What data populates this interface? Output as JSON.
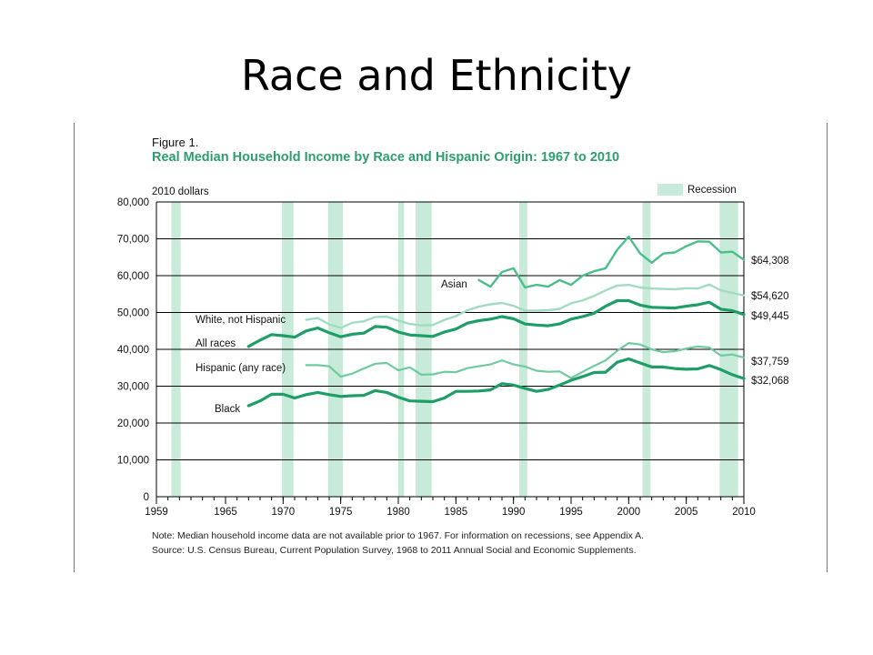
{
  "slide": {
    "title": "Race and Ethnicity"
  },
  "figure": {
    "label": "Figure 1.",
    "title": "Real Median Household Income by Race and Hispanic Origin: 1967 to 2010",
    "note": "Note: Median household income data are not available prior to 1967. For information on recessions, see Appendix A.",
    "source": "Source: U.S. Census Bureau, Current Population Survey, 1968 to 2011 Annual Social and Economic Supplements."
  },
  "colors": {
    "dark": "#1e9e66",
    "medium": "#4bbf8a",
    "light": "#a2dcc0",
    "recession": "#c8ebd9",
    "accent": "#2e9e6e"
  },
  "chart_data": {
    "type": "line",
    "title": "Real Median Household Income by Race and Hispanic Origin: 1967 to 2010",
    "ylabel": "2010 dollars",
    "xlim": [
      1959,
      2010
    ],
    "ylim": [
      0,
      80000
    ],
    "x_ticks": [
      1959,
      1965,
      1970,
      1975,
      1980,
      1985,
      1990,
      1995,
      2000,
      2005,
      2010
    ],
    "y_ticks": [
      0,
      10000,
      20000,
      30000,
      40000,
      50000,
      60000,
      70000,
      80000
    ],
    "y_tick_labels": [
      "0",
      "10,000",
      "20,000",
      "30,000",
      "40,000",
      "50,000",
      "60,000",
      "70,000",
      "80,000"
    ],
    "grid": "horizontal",
    "legend": {
      "label": "Recession",
      "placement": "top-right"
    },
    "recessions": [
      [
        1960.3,
        1961.1
      ],
      [
        1969.9,
        1970.9
      ],
      [
        1973.9,
        1975.2
      ],
      [
        1980.0,
        1980.5
      ],
      [
        1981.5,
        1982.9
      ],
      [
        1990.5,
        1991.2
      ],
      [
        2001.2,
        2001.9
      ],
      [
        2007.9,
        2009.5
      ]
    ],
    "series": [
      {
        "name": "Asian",
        "style": "medium",
        "end_label": "$64,308",
        "x": [
          1987,
          1988,
          1989,
          1990,
          1991,
          1992,
          1993,
          1994,
          1995,
          1996,
          1997,
          1998,
          1999,
          2000,
          2001,
          2002,
          2003,
          2004,
          2005,
          2006,
          2007,
          2008,
          2009,
          2010
        ],
        "y": [
          58800,
          57000,
          61000,
          62000,
          56800,
          57500,
          57000,
          58800,
          57500,
          60000,
          61200,
          62000,
          67000,
          70600,
          66000,
          63500,
          66000,
          66300,
          68000,
          69300,
          69200,
          66300,
          66500,
          64308
        ]
      },
      {
        "name": "White, not Hispanic",
        "style": "light",
        "end_label": "$54,620",
        "x": [
          1972,
          1973,
          1974,
          1975,
          1976,
          1977,
          1978,
          1979,
          1980,
          1981,
          1982,
          1983,
          1984,
          1985,
          1986,
          1987,
          1988,
          1989,
          1990,
          1991,
          1992,
          1993,
          1994,
          1995,
          1996,
          1997,
          1998,
          1999,
          2000,
          2001,
          2002,
          2003,
          2004,
          2005,
          2006,
          2007,
          2008,
          2009,
          2010
        ],
        "y": [
          48000,
          48500,
          46800,
          45800,
          47200,
          47600,
          48800,
          48900,
          47800,
          46900,
          46500,
          46600,
          48000,
          49000,
          50600,
          51600,
          52200,
          52600,
          51800,
          50500,
          50500,
          50600,
          51000,
          52500,
          53300,
          54500,
          56000,
          57300,
          57500,
          56800,
          56500,
          56400,
          56300,
          56600,
          56500,
          57600,
          56000,
          55300,
          54620
        ]
      },
      {
        "name": "All races",
        "style": "dark",
        "end_label": "$49,445",
        "x": [
          1967,
          1968,
          1969,
          1970,
          1971,
          1972,
          1973,
          1974,
          1975,
          1976,
          1977,
          1978,
          1979,
          1980,
          1981,
          1982,
          1983,
          1984,
          1985,
          1986,
          1987,
          1988,
          1989,
          1990,
          1991,
          1992,
          1993,
          1994,
          1995,
          1996,
          1997,
          1998,
          1999,
          2000,
          2001,
          2002,
          2003,
          2004,
          2005,
          2006,
          2007,
          2008,
          2009,
          2010
        ],
        "y": [
          40800,
          42500,
          44000,
          43700,
          43300,
          45000,
          45800,
          44500,
          43400,
          44100,
          44400,
          46200,
          46000,
          44700,
          43900,
          43700,
          43500,
          44700,
          45500,
          47100,
          47800,
          48200,
          48900,
          48300,
          46900,
          46600,
          46400,
          46900,
          48200,
          48900,
          49800,
          51700,
          53200,
          53200,
          52000,
          51400,
          51300,
          51200,
          51700,
          52100,
          52800,
          50900,
          50500,
          49445
        ]
      },
      {
        "name": "Hispanic (any race)",
        "style": "light-medium",
        "end_label": "$37,759",
        "x": [
          1972,
          1973,
          1974,
          1975,
          1976,
          1977,
          1978,
          1979,
          1980,
          1981,
          1982,
          1983,
          1984,
          1985,
          1986,
          1987,
          1988,
          1989,
          1990,
          1991,
          1992,
          1993,
          1994,
          1995,
          1996,
          1997,
          1998,
          1999,
          2000,
          2001,
          2002,
          2003,
          2004,
          2005,
          2006,
          2007,
          2008,
          2009,
          2010
        ],
        "y": [
          35700,
          35700,
          35400,
          32600,
          33400,
          34800,
          36100,
          36300,
          34300,
          35100,
          33100,
          33200,
          33900,
          33800,
          34900,
          35400,
          35900,
          37000,
          35900,
          35300,
          34200,
          33900,
          34000,
          32200,
          33900,
          35500,
          37000,
          39600,
          41700,
          41300,
          40000,
          39200,
          39500,
          40200,
          40800,
          40500,
          38300,
          38600,
          37759
        ]
      },
      {
        "name": "Black",
        "style": "dark",
        "end_label": "$32,068",
        "x": [
          1967,
          1968,
          1969,
          1970,
          1971,
          1972,
          1973,
          1974,
          1975,
          1976,
          1977,
          1978,
          1979,
          1980,
          1981,
          1982,
          1983,
          1984,
          1985,
          1986,
          1987,
          1988,
          1989,
          1990,
          1991,
          1992,
          1993,
          1994,
          1995,
          1996,
          1997,
          1998,
          1999,
          2000,
          2001,
          2002,
          2003,
          2004,
          2005,
          2006,
          2007,
          2008,
          2009,
          2010
        ],
        "y": [
          24700,
          26000,
          27800,
          27800,
          26800,
          27700,
          28300,
          27700,
          27200,
          27400,
          27500,
          28800,
          28300,
          27000,
          26000,
          25900,
          25800,
          26800,
          28600,
          28600,
          28700,
          29000,
          30700,
          30300,
          29400,
          28600,
          29100,
          30300,
          31600,
          32600,
          33700,
          33800,
          36500,
          37400,
          36300,
          35200,
          35200,
          34800,
          34600,
          34700,
          35600,
          34500,
          33100,
          32068
        ]
      }
    ]
  }
}
